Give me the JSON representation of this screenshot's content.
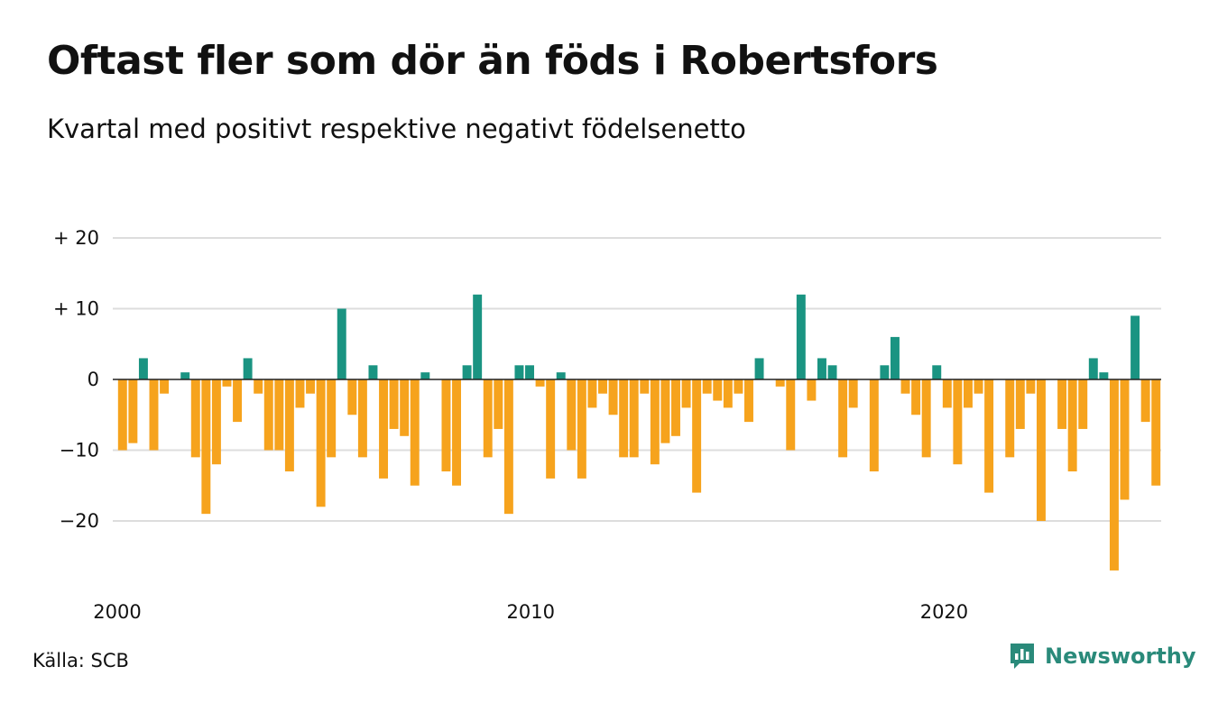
{
  "title": "Oftast fler som dör än föds i Robertsfors",
  "subtitle": "Kvartal med positivt respektive negativt födelsenetto",
  "source": "Källa: SCB",
  "brand": {
    "name": "Newsworthy",
    "icon": "newsworthy-logo-icon"
  },
  "colors": {
    "positive": "#1a9482",
    "negative": "#f6a31d",
    "grid": "#dddddd",
    "zero": "#222222"
  },
  "chart_data": {
    "type": "bar",
    "title": "Oftast fler som dör än föds i Robertsfors",
    "subtitle": "Kvartal med positivt respektive negativt födelsenetto",
    "xlabel": "",
    "ylabel": "",
    "ylim": [
      -28,
      20
    ],
    "xlim": [
      2000,
      2025.25
    ],
    "grid": true,
    "yticks": [
      {
        "value": 20,
        "label": "+ 20"
      },
      {
        "value": 10,
        "label": "+ 10"
      },
      {
        "value": 0,
        "label": "0"
      },
      {
        "value": -10,
        "label": "−10"
      },
      {
        "value": -20,
        "label": "−20"
      }
    ],
    "xticks": [
      {
        "value": 2000,
        "label": "2000"
      },
      {
        "value": 2010,
        "label": "2010"
      },
      {
        "value": 2020,
        "label": "2020"
      }
    ],
    "start_period": "2000 K1",
    "periodicity": "quarterly",
    "values": [
      -10,
      -9,
      3,
      -10,
      -2,
      0,
      1,
      -11,
      -19,
      -12,
      -1,
      -6,
      3,
      -2,
      -10,
      -10,
      -13,
      -4,
      -2,
      -18,
      -11,
      10,
      -5,
      -11,
      2,
      -14,
      -7,
      -8,
      -15,
      1,
      0,
      -13,
      -15,
      2,
      12,
      -11,
      -7,
      -19,
      2,
      2,
      -1,
      -14,
      1,
      -10,
      -14,
      -4,
      -2,
      -5,
      -11,
      -11,
      -2,
      -12,
      -9,
      -8,
      -4,
      -16,
      -2,
      -3,
      -4,
      -2,
      -6,
      3,
      0,
      -1,
      -10,
      12,
      -3,
      3,
      2,
      -11,
      -4,
      0,
      -13,
      2,
      6,
      -2,
      -5,
      -11,
      2,
      -4,
      -12,
      -4,
      -2,
      -16,
      0,
      -11,
      -7,
      -2,
      -20,
      0,
      -7,
      -13,
      -7,
      3,
      1,
      -27,
      -17,
      9,
      -6,
      -15
    ]
  }
}
